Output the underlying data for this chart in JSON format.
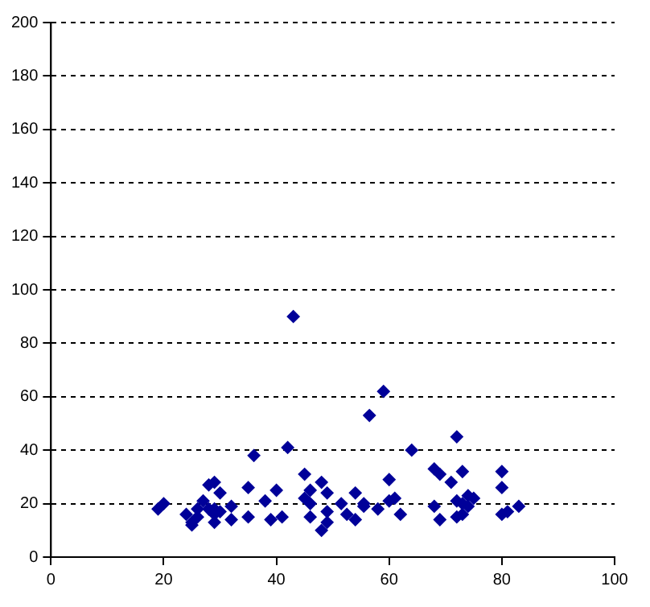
{
  "chart_data": {
    "type": "scatter",
    "marker": "diamond",
    "grid": "y",
    "line_style": "dashed",
    "xlim": [
      0,
      100
    ],
    "xticks": [
      0,
      20,
      40,
      60,
      80,
      100
    ],
    "ylim": [
      0,
      200
    ],
    "yticks": [
      0,
      20,
      40,
      60,
      80,
      100,
      120,
      140,
      160,
      180,
      200
    ],
    "series": [
      {
        "color": "#000099",
        "x": [
          19,
          20,
          24,
          25,
          25,
          26,
          26,
          27,
          28,
          29,
          28,
          29,
          29,
          29,
          30,
          30,
          32,
          32,
          35,
          35,
          36,
          38,
          39,
          40,
          41,
          42,
          43,
          45,
          45,
          46,
          46,
          46,
          48,
          48,
          49,
          49,
          49,
          51.5,
          52.5,
          54,
          54,
          55.5,
          55.5,
          56.5,
          58,
          59,
          60,
          60,
          61,
          62,
          64,
          68,
          69,
          68,
          69,
          71,
          72,
          72,
          72,
          73,
          73,
          73,
          74,
          74,
          75,
          80,
          80,
          80,
          81,
          83
        ],
        "values": [
          18,
          20,
          16,
          12,
          13,
          18,
          15,
          21,
          27,
          28,
          18,
          18,
          13,
          16,
          17,
          24,
          19,
          14,
          26,
          15,
          38,
          21,
          14,
          25,
          15,
          41,
          90,
          31,
          22,
          25,
          20,
          15,
          28,
          10,
          24,
          17,
          13,
          20,
          16,
          24,
          14,
          20,
          19,
          53,
          18,
          62,
          29,
          21,
          22,
          16,
          40,
          33,
          31,
          19,
          14,
          28,
          45,
          21,
          15,
          32,
          20,
          16,
          23,
          19,
          22,
          32,
          26,
          16,
          17,
          19
        ]
      }
    ]
  }
}
